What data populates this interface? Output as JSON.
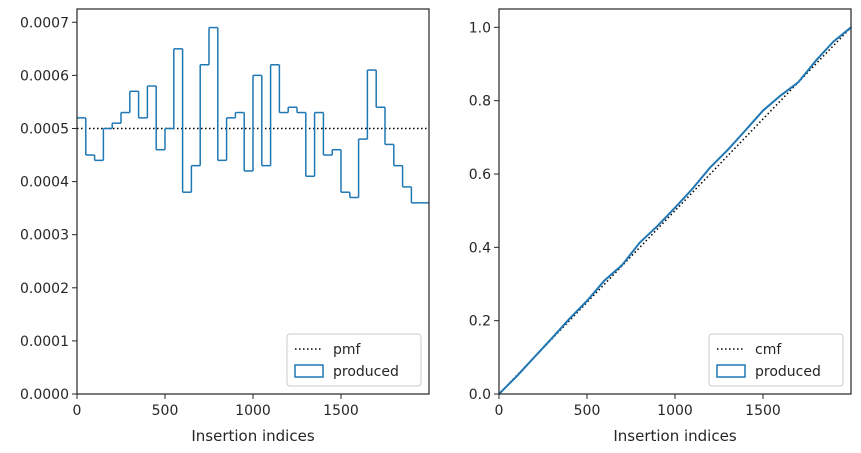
{
  "chart_data": [
    {
      "type": "step",
      "xlabel": "Insertion indices",
      "ylabel": "",
      "xlim": [
        0,
        2000
      ],
      "ylim": [
        0,
        0.000725
      ],
      "xticks": [
        "0",
        "500",
        "1000",
        "1500"
      ],
      "yticks": [
        "0.0000",
        "0.0001",
        "0.0002",
        "0.0003",
        "0.0004",
        "0.0005",
        "0.0006",
        "0.0007"
      ],
      "legend_position": "lower-right",
      "grid": false,
      "series": [
        {
          "name": "pmf",
          "style": "dotted",
          "color": "#000000",
          "x": [
            0,
            2000
          ],
          "y": [
            0.0005,
            0.0005
          ]
        },
        {
          "name": "produced",
          "style": "step",
          "color": "#1f77b4",
          "bin_width": 50,
          "bin_edges_start": [
            0,
            50,
            100,
            150,
            200,
            250,
            300,
            350,
            400,
            450,
            500,
            550,
            600,
            650,
            700,
            750,
            800,
            850,
            900,
            950,
            1000,
            1050,
            1100,
            1150,
            1200,
            1250,
            1300,
            1350,
            1400,
            1450,
            1500,
            1550,
            1600,
            1650,
            1700,
            1750,
            1800,
            1850,
            1900,
            1950
          ],
          "values": [
            0.00052,
            0.00045,
            0.00044,
            0.0005,
            0.00051,
            0.00053,
            0.00057,
            0.00052,
            0.00058,
            0.00046,
            0.0005,
            0.00065,
            0.00038,
            0.00043,
            0.00062,
            0.00069,
            0.00044,
            0.00052,
            0.00053,
            0.00042,
            0.0006,
            0.00043,
            0.00062,
            0.00053,
            0.00054,
            0.00053,
            0.00041,
            0.00053,
            0.00045,
            0.00046,
            0.00038,
            0.00037,
            0.00048,
            0.00061,
            0.00054,
            0.00047,
            0.00043,
            0.00039,
            0.00036,
            0.00036
          ]
        }
      ]
    },
    {
      "type": "line",
      "xlabel": "Insertion indices",
      "ylabel": "",
      "xlim": [
        0,
        2000
      ],
      "ylim": [
        0,
        1.05
      ],
      "xticks": [
        "0",
        "500",
        "1000",
        "1500"
      ],
      "yticks": [
        "0.0",
        "0.2",
        "0.4",
        "0.6",
        "0.8",
        "1.0"
      ],
      "legend_position": "lower-right",
      "grid": false,
      "series": [
        {
          "name": "cmf",
          "style": "dotted",
          "color": "#000000",
          "x": [
            0,
            2000
          ],
          "y": [
            0,
            1
          ]
        },
        {
          "name": "produced",
          "style": "solid",
          "color": "#1f77b4",
          "x": [
            0,
            100,
            200,
            300,
            400,
            500,
            600,
            700,
            800,
            900,
            1000,
            1100,
            1200,
            1300,
            1400,
            1500,
            1600,
            1700,
            1800,
            1900,
            2000
          ],
          "y": [
            0,
            0.048,
            0.1,
            0.152,
            0.205,
            0.254,
            0.31,
            0.352,
            0.413,
            0.458,
            0.508,
            0.56,
            0.618,
            0.666,
            0.719,
            0.773,
            0.814,
            0.85,
            0.909,
            0.961,
            1.0
          ]
        }
      ]
    }
  ]
}
